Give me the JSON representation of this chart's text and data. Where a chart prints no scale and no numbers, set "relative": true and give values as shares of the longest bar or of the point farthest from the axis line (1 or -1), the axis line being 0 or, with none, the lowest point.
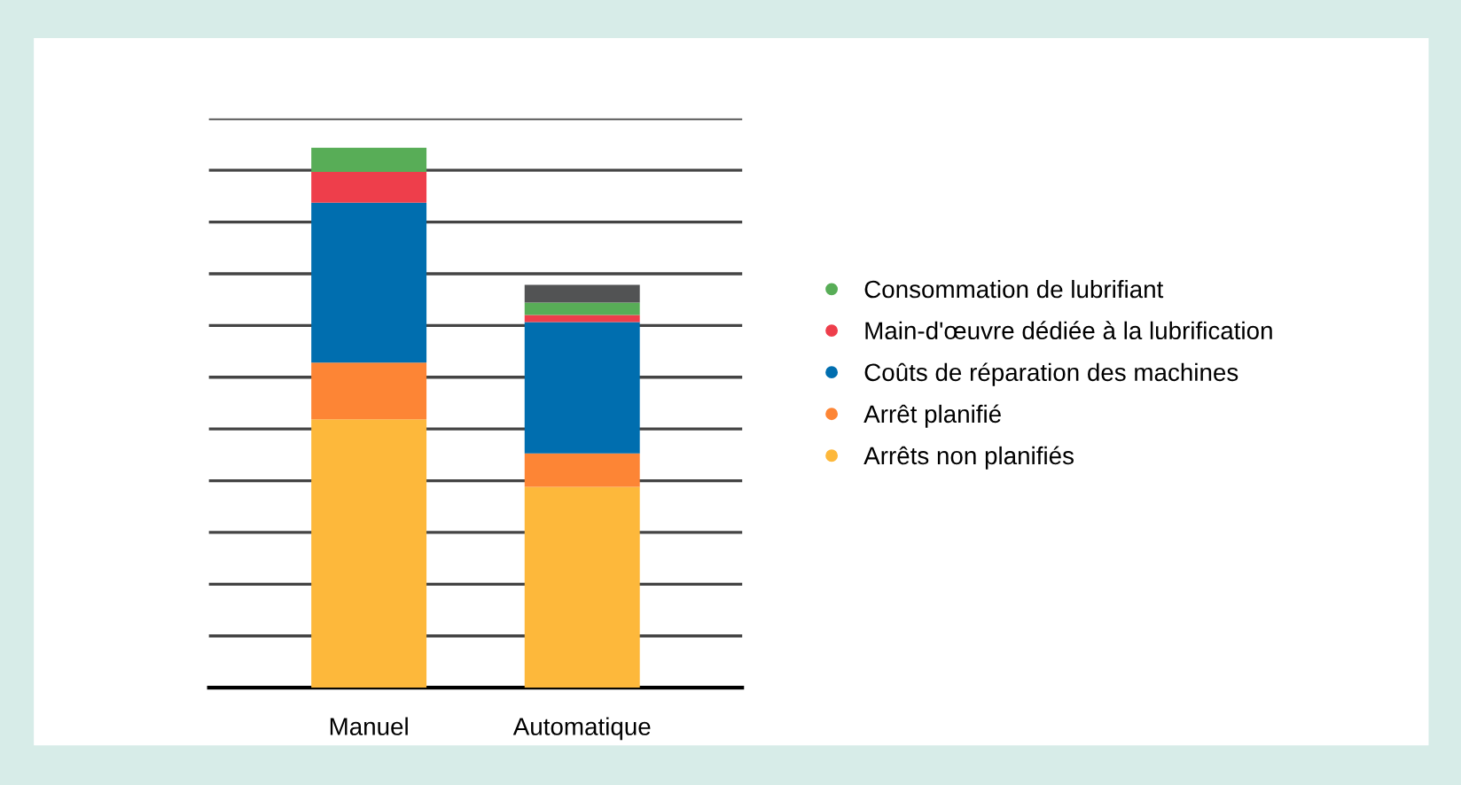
{
  "chart_data": {
    "type": "bar",
    "stacked": true,
    "relative": true,
    "grid": "y",
    "legend": "right",
    "categories": [
      "Manuel",
      "Automatique"
    ],
    "series": [
      {
        "name": "Arrêts non planifiés",
        "color": "#fdb83b",
        "values": [
          0.497,
          0.372
        ]
      },
      {
        "name": "Arrêt planifié",
        "color": "#fd8535",
        "values": [
          0.105,
          0.062
        ]
      },
      {
        "name": "Coûts de réparation des machines",
        "color": "#006eaf",
        "values": [
          0.296,
          0.243
        ]
      },
      {
        "name": "Main-d'œuvre dédiée à la lubrification",
        "color": "#ee3e4b",
        "values": [
          0.057,
          0.013
        ]
      },
      {
        "name": "Consommation de lubrifiant",
        "color": "#58ad57",
        "values": [
          0.045,
          0.023
        ]
      },
      {
        "color": "#525354",
        "values": [
          0,
          0.033
        ]
      }
    ]
  }
}
